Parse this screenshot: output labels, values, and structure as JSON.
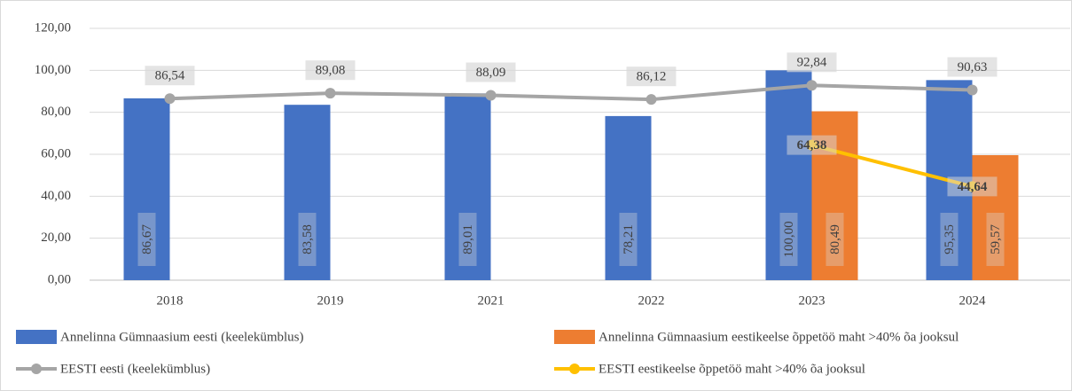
{
  "chart_data": {
    "type": "bar",
    "categories": [
      "2018",
      "2019",
      "2021",
      "2022",
      "2023",
      "2024"
    ],
    "ylim": [
      0,
      120
    ],
    "yticks": [
      {
        "value": 0,
        "label": "0,00"
      },
      {
        "value": 20,
        "label": "20,00"
      },
      {
        "value": 40,
        "label": "40,00"
      },
      {
        "value": 60,
        "label": "60,00"
      },
      {
        "value": 80,
        "label": "80,00"
      },
      {
        "value": 100,
        "label": "100,00"
      },
      {
        "value": 120,
        "label": "120,00"
      }
    ],
    "grid": true,
    "legend": "bottom",
    "series": [
      {
        "name": "Annelinna Gümnaasium eesti (keelekümblus)",
        "type": "bar",
        "color": "#4472c4",
        "values": [
          86.67,
          83.58,
          89.01,
          78.21,
          100.0,
          95.35
        ],
        "value_labels": [
          "86,67",
          "83,58",
          "89,01",
          "78,21",
          "100,00",
          "95,35"
        ]
      },
      {
        "name": "Annelinna Gümnaasium eestikeelse õppetöö maht >40% õa jooksul",
        "type": "bar",
        "color": "#ed7d31",
        "values": [
          null,
          null,
          null,
          null,
          80.49,
          59.57
        ],
        "value_labels": [
          null,
          null,
          null,
          null,
          "80,49",
          "59,57"
        ]
      },
      {
        "name": "EESTI eesti (keelekümblus)",
        "type": "line",
        "color": "#a5a5a5",
        "values": [
          86.54,
          89.08,
          88.09,
          86.12,
          92.84,
          90.63
        ],
        "value_labels": [
          "86,54",
          "89,08",
          "88,09",
          "86,12",
          "92,84",
          "90,63"
        ]
      },
      {
        "name": "EESTI eestikeelse õppetöö maht >40% õa jooksul",
        "type": "line",
        "color": "#ffc000",
        "values": [
          null,
          null,
          null,
          null,
          64.38,
          44.64
        ],
        "value_labels": [
          null,
          null,
          null,
          null,
          "64,38",
          "44,64"
        ]
      }
    ]
  }
}
